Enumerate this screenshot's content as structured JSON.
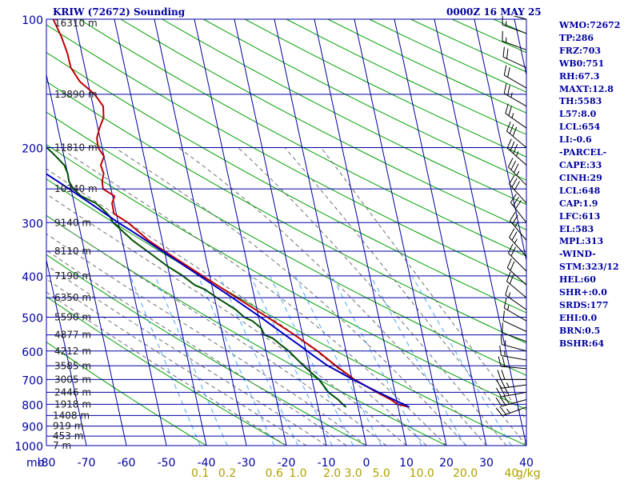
{
  "header": {
    "title": "KRIW (72672) Sounding",
    "datetime": "0000Z 16 MAY 25"
  },
  "indices": [
    "WMO:72672",
    "TP:286",
    "FRZ:703",
    "WB0:751",
    "RH:67.3",
    "MAXT:12.8",
    "TH:5583",
    "L57:8.0",
    "LCL:654",
    "LI:-0.6",
    "-PARCEL-",
    "CAPE:33",
    "CINH:29",
    "LCL:648",
    "CAP:1.9",
    "LFC:613",
    "EL:583",
    "MPL:313",
    "-WIND-",
    "STM:323/12",
    "HEL:60",
    "SHR+:0.0",
    "SRDS:177",
    "EHI:0.0",
    "BRN:0.5",
    "BSHR:64"
  ],
  "colors": {
    "frame": "#0000a0",
    "isobar": "#0000a0",
    "isotherm": "#0000a0",
    "dry_adiabat": "#00a000",
    "moist_adiabat": "#707070",
    "mixing_ratio": "#4aa6ff",
    "temperature": "#c00000",
    "dewpoint": "#005000",
    "parcel": "#0000c0",
    "height_text": "#202020",
    "axis_text": "#0000a0",
    "mixing_text": "#b0a000",
    "wind": "#000000"
  },
  "chart_data": {
    "type": "line",
    "diagram": "skew-T",
    "x_unit": "°C",
    "y_unit": "mb",
    "xlim": [
      -80,
      40
    ],
    "ylim": [
      1000,
      100
    ],
    "y_scale": "log",
    "x_label_corner": "mb",
    "pressure_ticks": [
      {
        "p": 100,
        "label": "100"
      },
      {
        "p": 200,
        "label": "200"
      },
      {
        "p": 300,
        "label": "300"
      },
      {
        "p": 400,
        "label": "400"
      },
      {
        "p": 500,
        "label": "500"
      },
      {
        "p": 600,
        "label": "600"
      },
      {
        "p": 700,
        "label": "700"
      },
      {
        "p": 800,
        "label": "800"
      },
      {
        "p": 900,
        "label": "900"
      },
      {
        "p": 1000,
        "label": "1000"
      }
    ],
    "temperature_ticks": [
      {
        "t": -80,
        "label": "-80"
      },
      {
        "t": -70,
        "label": "-70"
      },
      {
        "t": -60,
        "label": "-60"
      },
      {
        "t": -50,
        "label": "-50"
      },
      {
        "t": -40,
        "label": "-40"
      },
      {
        "t": -30,
        "label": "-30"
      },
      {
        "t": -20,
        "label": "-20"
      },
      {
        "t": -10,
        "label": "-10"
      },
      {
        "t": 0,
        "label": "0"
      },
      {
        "t": 10,
        "label": "10"
      },
      {
        "t": 20,
        "label": "20"
      },
      {
        "t": 30,
        "label": "30"
      },
      {
        "t": 40,
        "label": "40"
      }
    ],
    "height_labels": [
      {
        "p": 100,
        "label": "16310 m"
      },
      {
        "p": 150,
        "label": "13890 m"
      },
      {
        "p": 200,
        "label": "11810 m"
      },
      {
        "p": 250,
        "label": "10340 m"
      },
      {
        "p": 300,
        "label": "9140 m"
      },
      {
        "p": 350,
        "label": "8110 m"
      },
      {
        "p": 400,
        "label": "7190 m"
      },
      {
        "p": 450,
        "label": "6350 m"
      },
      {
        "p": 500,
        "label": "5590 m"
      },
      {
        "p": 550,
        "label": "4877 m"
      },
      {
        "p": 600,
        "label": "4212 m"
      },
      {
        "p": 650,
        "label": "3585 m"
      },
      {
        "p": 700,
        "label": "3005 m"
      },
      {
        "p": 750,
        "label": "2446 m"
      },
      {
        "p": 800,
        "label": "1918 m"
      },
      {
        "p": 850,
        "label": "1408 m"
      },
      {
        "p": 900,
        "label": "919 m"
      },
      {
        "p": 950,
        "label": "453 m"
      },
      {
        "p": 1000,
        "label": "7 m"
      }
    ],
    "mixing_ratio_labels": [
      {
        "w": 0.1,
        "label": "0.1"
      },
      {
        "w": 0.2,
        "label": "0.2"
      },
      {
        "w": 0.6,
        "label": "0.6"
      },
      {
        "w": 1.0,
        "label": "1.0"
      },
      {
        "w": 2.0,
        "label": "2.0"
      },
      {
        "w": 3.0,
        "label": "3.0"
      },
      {
        "w": 5.0,
        "label": "5.0"
      },
      {
        "w": 10.0,
        "label": "10.0"
      },
      {
        "w": 20.0,
        "label": "20.0"
      },
      {
        "w": 40.0,
        "label": "40"
      }
    ],
    "mixing_ratio_unit": "g/kg",
    "series": [
      {
        "key": "temperature",
        "points": [
          [
            812,
            12.8
          ],
          [
            800,
            10.0
          ],
          [
            780,
            8.6
          ],
          [
            750,
            5.5
          ],
          [
            700,
            0.6
          ],
          [
            650,
            -3.3
          ],
          [
            600,
            -7.1
          ],
          [
            550,
            -12.0
          ],
          [
            500,
            -17.8
          ],
          [
            450,
            -24.4
          ],
          [
            400,
            -31.8
          ],
          [
            350,
            -40.0
          ],
          [
            330,
            -43.4
          ],
          [
            300,
            -47.6
          ],
          [
            286,
            -50.6
          ],
          [
            270,
            -50.5
          ],
          [
            260,
            -49.5
          ],
          [
            250,
            -52.0
          ],
          [
            240,
            -51.8
          ],
          [
            230,
            -51.0
          ],
          [
            220,
            -51.3
          ],
          [
            210,
            -50.0
          ],
          [
            200,
            -51.0
          ],
          [
            190,
            -50.8
          ],
          [
            180,
            -49.6
          ],
          [
            170,
            -48.0
          ],
          [
            160,
            -47.5
          ],
          [
            150,
            -49.0
          ],
          [
            140,
            -52.0
          ],
          [
            130,
            -53.5
          ],
          [
            120,
            -53.6
          ],
          [
            110,
            -54.2
          ],
          [
            100,
            -55.3
          ]
        ]
      },
      {
        "key": "dewpoint",
        "points": [
          [
            812,
            -3.0
          ],
          [
            800,
            -3.7
          ],
          [
            780,
            -4.6
          ],
          [
            750,
            -6.6
          ],
          [
            700,
            -8.3
          ],
          [
            650,
            -11.4
          ],
          [
            600,
            -14.3
          ],
          [
            580,
            -16.0
          ],
          [
            560,
            -17.6
          ],
          [
            550,
            -19.5
          ],
          [
            530,
            -20.0
          ],
          [
            510,
            -21.8
          ],
          [
            500,
            -23.6
          ],
          [
            480,
            -25.3
          ],
          [
            460,
            -28.0
          ],
          [
            450,
            -29.4
          ],
          [
            430,
            -32.0
          ],
          [
            420,
            -34.3
          ],
          [
            400,
            -36.7
          ],
          [
            380,
            -40.0
          ],
          [
            350,
            -44.3
          ],
          [
            330,
            -47.4
          ],
          [
            300,
            -51.3
          ],
          [
            290,
            -51.8
          ],
          [
            280,
            -53.0
          ],
          [
            270,
            -54.6
          ],
          [
            260,
            -57.8
          ],
          [
            250,
            -59.4
          ],
          [
            240,
            -60.1
          ],
          [
            230,
            -60.0
          ],
          [
            220,
            -60.4
          ],
          [
            210,
            -62.0
          ],
          [
            200,
            -63.8
          ],
          [
            190,
            -64.5
          ],
          [
            180,
            -64.6
          ],
          [
            170,
            -66.0
          ],
          [
            160,
            -68.5
          ],
          [
            150,
            -70.8
          ],
          [
            140,
            -72.3
          ],
          [
            130,
            -73.5
          ],
          [
            120,
            -75.5
          ],
          [
            110,
            -78.4
          ],
          [
            100,
            -80.0
          ]
        ]
      },
      {
        "key": "parcel",
        "points": [
          [
            812,
            12.8
          ],
          [
            780,
            9.3
          ],
          [
            750,
            5.9
          ],
          [
            700,
            0.2
          ],
          [
            648,
            -5.5
          ],
          [
            613,
            -8.6
          ],
          [
            583,
            -11.2
          ],
          [
            550,
            -14.4
          ],
          [
            500,
            -19.5
          ],
          [
            450,
            -25.5
          ],
          [
            400,
            -32.5
          ],
          [
            350,
            -40.5
          ],
          [
            313,
            -47.3
          ],
          [
            300,
            -50.0
          ],
          [
            270,
            -56.0
          ],
          [
            250,
            -60.5
          ],
          [
            230,
            -65.5
          ],
          [
            210,
            -71.0
          ],
          [
            190,
            -77.0
          ],
          [
            186,
            -78.8
          ]
        ]
      }
    ],
    "wind_barbs": [
      {
        "p": 812,
        "dir": 250,
        "kt": 25
      },
      {
        "p": 780,
        "dir": 255,
        "kt": 28
      },
      {
        "p": 750,
        "dir": 260,
        "kt": 30
      },
      {
        "p": 720,
        "dir": 262,
        "kt": 25
      },
      {
        "p": 700,
        "dir": 270,
        "kt": 22
      },
      {
        "p": 660,
        "dir": 275,
        "kt": 18
      },
      {
        "p": 630,
        "dir": 280,
        "kt": 15
      },
      {
        "p": 600,
        "dir": 285,
        "kt": 15
      },
      {
        "p": 570,
        "dir": 290,
        "kt": 12
      },
      {
        "p": 540,
        "dir": 295,
        "kt": 12
      },
      {
        "p": 510,
        "dir": 300,
        "kt": 15
      },
      {
        "p": 480,
        "dir": 305,
        "kt": 15
      },
      {
        "p": 450,
        "dir": 310,
        "kt": 18
      },
      {
        "p": 420,
        "dir": 312,
        "kt": 20
      },
      {
        "p": 390,
        "dir": 315,
        "kt": 20
      },
      {
        "p": 360,
        "dir": 318,
        "kt": 25
      },
      {
        "p": 330,
        "dir": 320,
        "kt": 25
      },
      {
        "p": 300,
        "dir": 322,
        "kt": 30
      },
      {
        "p": 270,
        "dir": 318,
        "kt": 30
      },
      {
        "p": 245,
        "dir": 315,
        "kt": 35
      },
      {
        "p": 220,
        "dir": 312,
        "kt": 35
      },
      {
        "p": 200,
        "dir": 310,
        "kt": 30
      },
      {
        "p": 180,
        "dir": 305,
        "kt": 25
      },
      {
        "p": 160,
        "dir": 300,
        "kt": 25
      },
      {
        "p": 145,
        "dir": 300,
        "kt": 20
      },
      {
        "p": 130,
        "dir": 295,
        "kt": 20
      },
      {
        "p": 118,
        "dir": 290,
        "kt": 15
      },
      {
        "p": 108,
        "dir": 290,
        "kt": 15
      },
      {
        "p": 100,
        "dir": 285,
        "kt": 10
      }
    ]
  }
}
